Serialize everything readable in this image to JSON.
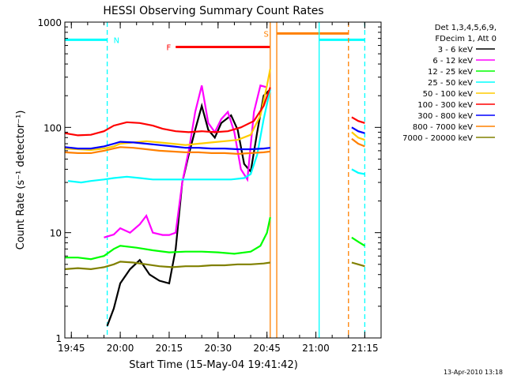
{
  "chart_data": {
    "type": "line",
    "title": "HESSI Observing Summary Count Rates",
    "xlabel": "Start Time (15-May-04 19:41:42)",
    "ylabel": "Count Rate (s⁻¹ detector⁻¹)",
    "xlim": [
      "19:43",
      "21:20"
    ],
    "ylim": [
      1,
      1000
    ],
    "yscale": "log",
    "x_ticks": [
      "19:45",
      "20:00",
      "20:15",
      "20:30",
      "20:45",
      "21:00",
      "21:15"
    ],
    "y_ticks": [
      "1",
      "10",
      "100",
      "1000"
    ],
    "legend_header": [
      "Det 1,3,4,5,6,9,",
      "FDecim 1, Att 0"
    ],
    "legend_position": "top-right, outside plot",
    "timestamp": "13-Apr-2010 13:18",
    "markers": [
      {
        "label": "N",
        "color": "#00ffff",
        "line": "dashed",
        "time": "19:56"
      },
      {
        "label": "F",
        "color": "#ff0000",
        "line": "solid",
        "time": "20:17"
      },
      {
        "label": "S",
        "color": "#ff8000",
        "line": "solid",
        "time": "20:47"
      }
    ],
    "bars": [
      {
        "name": "night",
        "color": "#00ffff",
        "y": 680,
        "ranges": [
          [
            "19:43",
            "19:56"
          ],
          [
            "21:01",
            "21:15"
          ]
        ]
      },
      {
        "name": "flare",
        "color": "#ff0000",
        "y": 580,
        "ranges": [
          [
            "20:17",
            "20:46"
          ]
        ]
      },
      {
        "name": "saa",
        "color": "#ff8000",
        "y": 780,
        "ranges": [
          [
            "20:48",
            "21:10"
          ]
        ]
      }
    ],
    "vertical_lines": [
      {
        "time": "19:56",
        "color": "#00ffff",
        "dash": true
      },
      {
        "time": "20:46",
        "color": "#ff8000",
        "dash": false
      },
      {
        "time": "20:48",
        "color": "#ff8000",
        "dash": false
      },
      {
        "time": "21:01",
        "color": "#00ffff",
        "dash": false
      },
      {
        "time": "21:10",
        "color": "#ff8000",
        "dash": true
      },
      {
        "time": "21:15",
        "color": "#00ffff",
        "dash": true
      }
    ],
    "series": [
      {
        "name": "3 - 6 keV",
        "color": "#000000",
        "points": [
          [
            "19:56",
            1.3
          ],
          [
            "19:58",
            1.9
          ],
          [
            "20:00",
            3.3
          ],
          [
            "20:03",
            4.5
          ],
          [
            "20:06",
            5.5
          ],
          [
            "20:09",
            4.0
          ],
          [
            "20:12",
            3.5
          ],
          [
            "20:15",
            3.3
          ],
          [
            "20:17",
            7.0
          ],
          [
            "20:19",
            30
          ],
          [
            "20:21",
            55
          ],
          [
            "20:23",
            95
          ],
          [
            "20:25",
            160
          ],
          [
            "20:27",
            95
          ],
          [
            "20:29",
            80
          ],
          [
            "20:31",
            110
          ],
          [
            "20:34",
            130
          ],
          [
            "20:36",
            95
          ],
          [
            "20:38",
            45
          ],
          [
            "20:40",
            38
          ],
          [
            "20:42",
            90
          ],
          [
            "20:44",
            200
          ],
          [
            "20:46",
            230
          ]
        ]
      },
      {
        "name": "6 - 12 keV",
        "color": "#ff00ff",
        "points": [
          [
            "19:55",
            9.0
          ],
          [
            "19:58",
            9.6
          ],
          [
            "20:00",
            11.0
          ],
          [
            "20:03",
            10.0
          ],
          [
            "20:06",
            12.0
          ],
          [
            "20:08",
            14.5
          ],
          [
            "20:10",
            10.0
          ],
          [
            "20:13",
            9.5
          ],
          [
            "20:15",
            9.5
          ],
          [
            "20:17",
            10.0
          ],
          [
            "20:19",
            30
          ],
          [
            "20:21",
            60
          ],
          [
            "20:23",
            140
          ],
          [
            "20:25",
            250
          ],
          [
            "20:27",
            110
          ],
          [
            "20:29",
            90
          ],
          [
            "20:31",
            120
          ],
          [
            "20:33",
            140
          ],
          [
            "20:35",
            90
          ],
          [
            "20:37",
            40
          ],
          [
            "20:39",
            32
          ],
          [
            "20:41",
            140
          ],
          [
            "20:43",
            250
          ],
          [
            "20:45",
            240
          ]
        ]
      },
      {
        "name": "12 - 25 keV",
        "color": "#00ff00",
        "points": [
          [
            "19:43",
            5.8
          ],
          [
            "19:47",
            5.8
          ],
          [
            "19:51",
            5.6
          ],
          [
            "19:55",
            6.0
          ],
          [
            "19:58",
            7.0
          ],
          [
            "20:00",
            7.5
          ],
          [
            "20:05",
            7.2
          ],
          [
            "20:10",
            6.8
          ],
          [
            "20:15",
            6.5
          ],
          [
            "20:20",
            6.6
          ],
          [
            "20:25",
            6.6
          ],
          [
            "20:30",
            6.5
          ],
          [
            "20:35",
            6.3
          ],
          [
            "20:40",
            6.6
          ],
          [
            "20:43",
            7.5
          ],
          [
            "20:45",
            10
          ],
          [
            "20:46",
            14
          ]
        ]
      },
      {
        "name": "25 - 50 keV",
        "color": "#00ffff",
        "points": [
          [
            "19:44",
            31
          ],
          [
            "19:48",
            30
          ],
          [
            "19:51",
            31
          ],
          [
            "19:55",
            32
          ],
          [
            "19:58",
            33
          ],
          [
            "20:02",
            34
          ],
          [
            "20:06",
            33
          ],
          [
            "20:10",
            32
          ],
          [
            "20:14",
            32
          ],
          [
            "20:18",
            32
          ],
          [
            "20:22",
            32
          ],
          [
            "20:26",
            32
          ],
          [
            "20:30",
            32
          ],
          [
            "20:34",
            32
          ],
          [
            "20:38",
            33
          ],
          [
            "20:40",
            36
          ],
          [
            "20:42",
            55
          ],
          [
            "20:44",
            120
          ],
          [
            "20:46",
            230
          ]
        ]
      },
      {
        "name": "50 - 100 keV",
        "color": "#ffcc00",
        "points": [
          [
            "19:43",
            63
          ],
          [
            "19:47",
            62
          ],
          [
            "19:51",
            61
          ],
          [
            "19:55",
            63
          ],
          [
            "19:58",
            66
          ],
          [
            "20:00",
            70
          ],
          [
            "20:04",
            72
          ],
          [
            "20:08",
            74
          ],
          [
            "20:12",
            72
          ],
          [
            "20:16",
            70
          ],
          [
            "20:20",
            68
          ],
          [
            "20:24",
            70
          ],
          [
            "20:28",
            72
          ],
          [
            "20:32",
            74
          ],
          [
            "20:36",
            76
          ],
          [
            "20:40",
            85
          ],
          [
            "20:43",
            130
          ],
          [
            "20:45",
            250
          ],
          [
            "20:46",
            360
          ]
        ]
      },
      {
        "name": "100 - 300 keV",
        "color": "#ff0000",
        "points": [
          [
            "19:43",
            88
          ],
          [
            "19:47",
            84
          ],
          [
            "19:51",
            85
          ],
          [
            "19:55",
            92
          ],
          [
            "19:58",
            104
          ],
          [
            "20:02",
            112
          ],
          [
            "20:06",
            110
          ],
          [
            "20:10",
            104
          ],
          [
            "20:13",
            97
          ],
          [
            "20:17",
            92
          ],
          [
            "20:21",
            90
          ],
          [
            "20:25",
            92
          ],
          [
            "20:29",
            90
          ],
          [
            "20:33",
            92
          ],
          [
            "20:37",
            100
          ],
          [
            "20:41",
            115
          ],
          [
            "20:44",
            160
          ],
          [
            "20:46",
            240
          ]
        ]
      },
      {
        "name": "300 - 800 keV",
        "color": "#0000ff",
        "points": [
          [
            "19:43",
            65
          ],
          [
            "19:47",
            63
          ],
          [
            "19:51",
            63
          ],
          [
            "19:55",
            66
          ],
          [
            "19:58",
            70
          ],
          [
            "20:00",
            73
          ],
          [
            "20:04",
            72
          ],
          [
            "20:08",
            70
          ],
          [
            "20:12",
            68
          ],
          [
            "20:16",
            66
          ],
          [
            "20:20",
            64
          ],
          [
            "20:24",
            64
          ],
          [
            "20:28",
            63
          ],
          [
            "20:32",
            63
          ],
          [
            "20:36",
            62
          ],
          [
            "20:40",
            62
          ],
          [
            "20:44",
            63
          ],
          [
            "20:46",
            64
          ]
        ]
      },
      {
        "name": "800 - 7000 keV",
        "color": "#ff8000",
        "points": [
          [
            "19:43",
            58
          ],
          [
            "19:47",
            57
          ],
          [
            "19:51",
            57
          ],
          [
            "19:55",
            60
          ],
          [
            "19:58",
            63
          ],
          [
            "20:00",
            65
          ],
          [
            "20:04",
            64
          ],
          [
            "20:08",
            62
          ],
          [
            "20:12",
            60
          ],
          [
            "20:16",
            59
          ],
          [
            "20:20",
            58
          ],
          [
            "20:24",
            58
          ],
          [
            "20:28",
            57
          ],
          [
            "20:32",
            57
          ],
          [
            "20:36",
            56
          ],
          [
            "20:40",
            57
          ],
          [
            "20:44",
            58
          ],
          [
            "20:46",
            59
          ]
        ]
      },
      {
        "name": "7000 - 20000 keV",
        "color": "#808000",
        "points": [
          [
            "19:43",
            4.5
          ],
          [
            "19:47",
            4.6
          ],
          [
            "19:51",
            4.5
          ],
          [
            "19:55",
            4.7
          ],
          [
            "19:58",
            5.0
          ],
          [
            "20:00",
            5.3
          ],
          [
            "20:04",
            5.2
          ],
          [
            "20:08",
            5.0
          ],
          [
            "20:12",
            4.8
          ],
          [
            "20:16",
            4.7
          ],
          [
            "20:20",
            4.8
          ],
          [
            "20:24",
            4.8
          ],
          [
            "20:28",
            4.9
          ],
          [
            "20:32",
            4.9
          ],
          [
            "20:36",
            5.0
          ],
          [
            "20:40",
            5.0
          ],
          [
            "20:44",
            5.1
          ],
          [
            "20:46",
            5.2
          ]
        ]
      }
    ],
    "after_gap": [
      {
        "name": "100 - 300 keV",
        "color": "#ff0000",
        "points": [
          [
            "21:11",
            125
          ],
          [
            "21:13",
            115
          ],
          [
            "21:15",
            110
          ]
        ]
      },
      {
        "name": "300 - 800 keV",
        "color": "#0000ff",
        "points": [
          [
            "21:11",
            100
          ],
          [
            "21:13",
            92
          ],
          [
            "21:15",
            88
          ]
        ]
      },
      {
        "name": "50 - 100 keV",
        "color": "#ffcc00",
        "points": [
          [
            "21:11",
            90
          ],
          [
            "21:13",
            80
          ],
          [
            "21:15",
            76
          ]
        ]
      },
      {
        "name": "800 - 7000 keV",
        "color": "#ff8000",
        "points": [
          [
            "21:11",
            78
          ],
          [
            "21:13",
            70
          ],
          [
            "21:15",
            66
          ]
        ]
      },
      {
        "name": "25 - 50 keV",
        "color": "#00ffff",
        "points": [
          [
            "21:11",
            40
          ],
          [
            "21:13",
            37
          ],
          [
            "21:15",
            36
          ]
        ]
      },
      {
        "name": "12 - 25 keV",
        "color": "#00ff00",
        "points": [
          [
            "21:11",
            9
          ],
          [
            "21:13",
            8.2
          ],
          [
            "21:15",
            7.5
          ]
        ]
      },
      {
        "name": "7000 - 20000 keV",
        "color": "#808000",
        "points": [
          [
            "21:11",
            5.2
          ],
          [
            "21:13",
            5.0
          ],
          [
            "21:15",
            4.8
          ]
        ]
      }
    ]
  }
}
